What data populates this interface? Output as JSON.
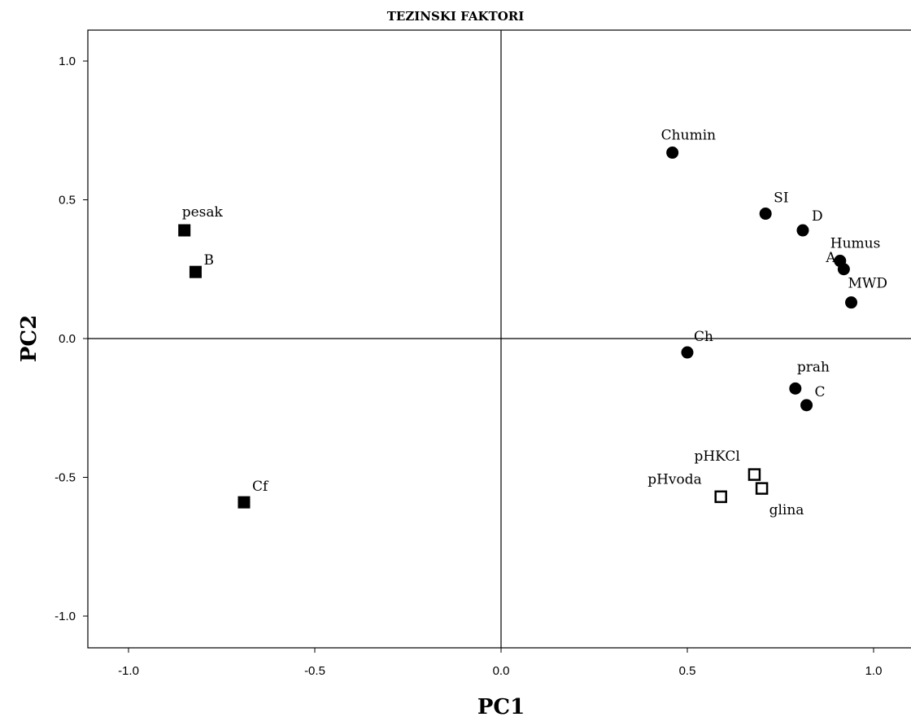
{
  "chart_data": {
    "type": "scatter",
    "title": "TEZINSKI FAKTORI",
    "xlabel": "PC1",
    "ylabel": "PC2",
    "xlim": [
      -1.1,
      1.1
    ],
    "ylim": [
      -1.11,
      1.11
    ],
    "x_ticks": [
      "-1.0",
      "-0.5",
      "0.0",
      "0.5",
      "1.0"
    ],
    "y_ticks": [
      "1.0",
      "0.5",
      "0.0",
      "-0.5",
      "-1.0"
    ],
    "reference_lines": {
      "x": 0,
      "y": 0
    },
    "grid": false,
    "series": [
      {
        "marker": "filled-square",
        "points": [
          {
            "label": "pesak",
            "x": -0.85,
            "y": 0.39
          },
          {
            "label": "B",
            "x": -0.82,
            "y": 0.24
          },
          {
            "label": "Cf",
            "x": -0.69,
            "y": -0.59
          }
        ]
      },
      {
        "marker": "filled-circle",
        "points": [
          {
            "label": "Chumin",
            "x": 0.46,
            "y": 0.67
          },
          {
            "label": "SI",
            "x": 0.71,
            "y": 0.45
          },
          {
            "label": "D",
            "x": 0.81,
            "y": 0.39
          },
          {
            "label": "Humus",
            "x": 0.91,
            "y": 0.28
          },
          {
            "label": "A",
            "x": 0.92,
            "y": 0.25
          },
          {
            "label": "MWD",
            "x": 0.94,
            "y": 0.13
          },
          {
            "label": "Ch",
            "x": 0.5,
            "y": -0.05
          },
          {
            "label": "prah",
            "x": 0.79,
            "y": -0.18
          },
          {
            "label": "C",
            "x": 0.82,
            "y": -0.24
          }
        ]
      },
      {
        "marker": "open-square",
        "points": [
          {
            "label": "pHKCl",
            "x": 0.68,
            "y": -0.49
          },
          {
            "label": "glina",
            "x": 0.7,
            "y": -0.54
          },
          {
            "label": "pHvoda",
            "x": 0.59,
            "y": -0.57
          }
        ]
      }
    ]
  }
}
